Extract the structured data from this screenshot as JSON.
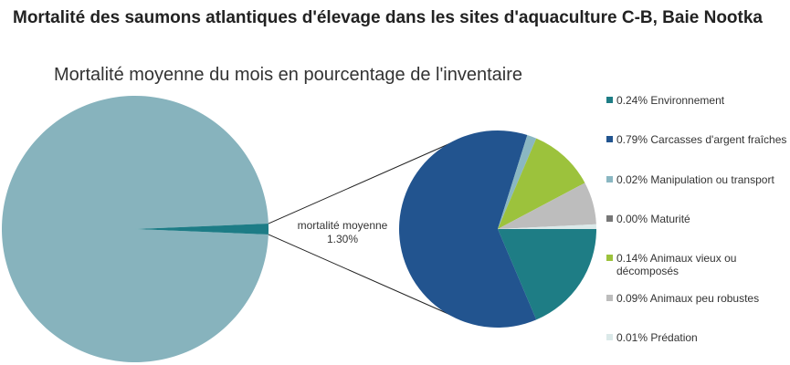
{
  "title": "Mortalité des saumons atlantiques d'élevage dans les sites d'aquaculture C-B, Baie Nootka",
  "chart_data": {
    "type": "pie",
    "subtitle": "Mortalité moyenne du mois en pourcentage de l'inventaire",
    "main_pie": {
      "slices": [
        {
          "label": "",
          "value": 98.7,
          "color": "#87b3bd"
        },
        {
          "label": "mortalité moyenne",
          "value": 1.3,
          "color": "#1d7c86"
        }
      ],
      "center_label_line1": "mortalité moyenne",
      "center_label_line2": "1.30%"
    },
    "breakdown_pie": {
      "series": [
        {
          "name": "Environnement",
          "value": 0.24,
          "label": "0.24% Environnement",
          "color": "#1e7d85"
        },
        {
          "name": "Carcasses d'argent fraîches",
          "value": 0.79,
          "label": "0.79% Carcasses d'argent fraîches",
          "color": "#22548f"
        },
        {
          "name": "Manipulation ou transport",
          "value": 0.02,
          "label": "0.02% Manipulation ou transport",
          "color": "#8ab7c2"
        },
        {
          "name": "Maturité",
          "value": 0.0,
          "label": "0.00% Maturité",
          "color": "#777777"
        },
        {
          "name": "Animaux vieux ou décomposés",
          "value": 0.14,
          "label": "0.14% Animaux vieux ou décomposés",
          "color": "#9cc23c"
        },
        {
          "name": "Animaux peu robustes",
          "value": 0.09,
          "label": "0.09% Animaux peu robustes",
          "color": "#bdbdbd"
        },
        {
          "name": "Prédation",
          "value": 0.01,
          "label": "0.01% Prédation",
          "color": "#dbe9e9"
        }
      ],
      "legend_position": "right"
    }
  }
}
